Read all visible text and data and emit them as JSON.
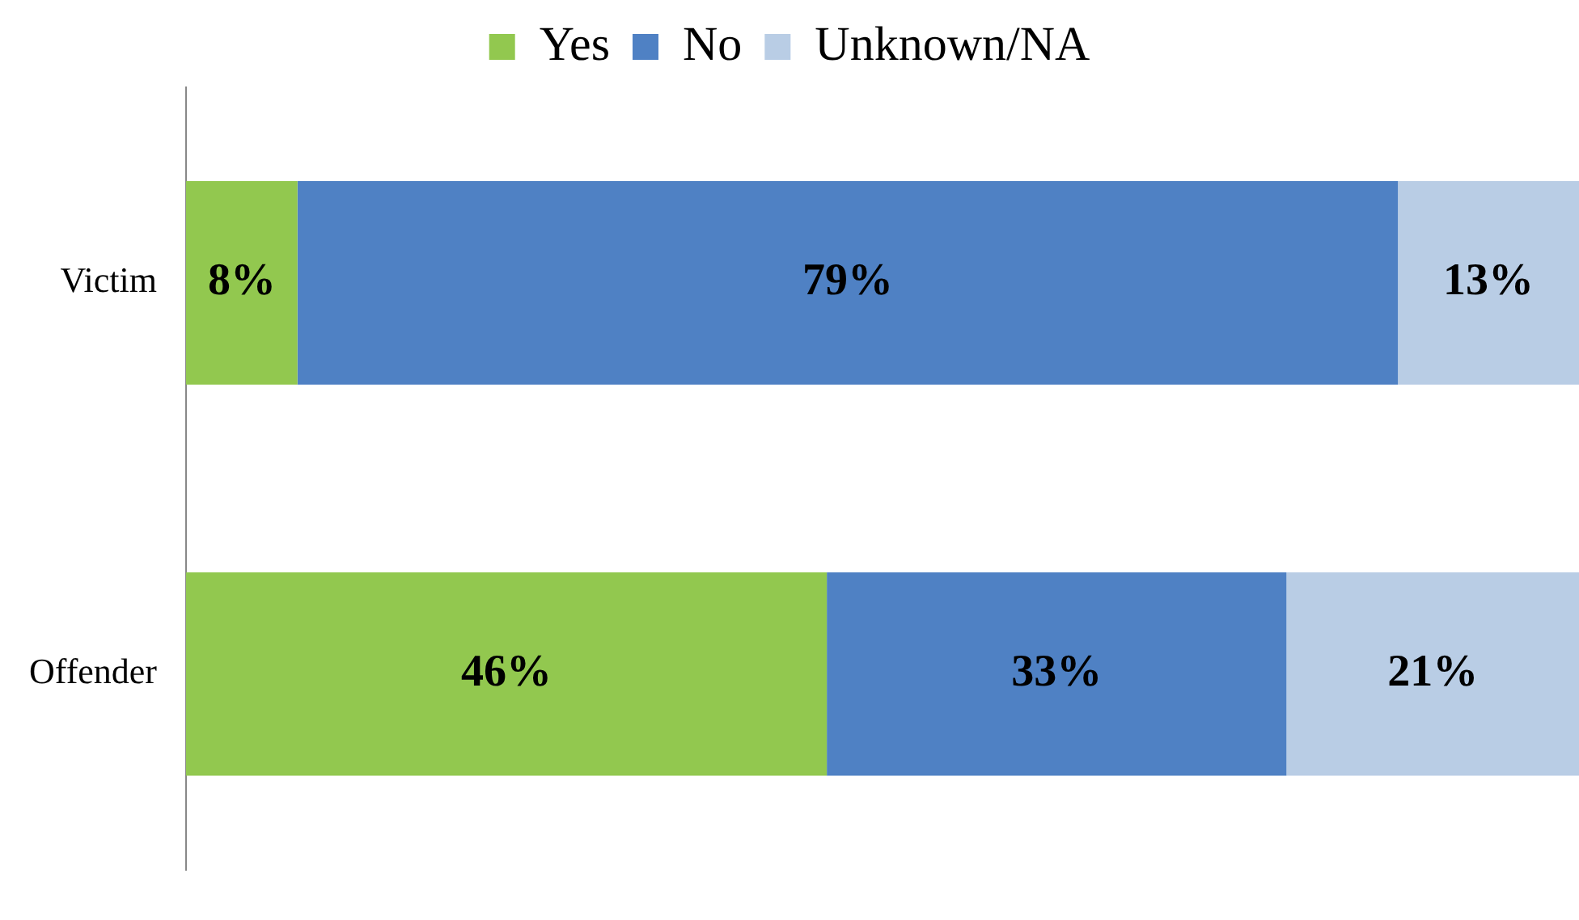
{
  "chart_data": {
    "type": "bar",
    "orientation": "horizontal",
    "stacked": true,
    "categories": [
      "Victim",
      "Offender"
    ],
    "series": [
      {
        "name": "Yes",
        "color": "#92c84f",
        "values": [
          8,
          46
        ],
        "value_labels": [
          "8%",
          "46%"
        ]
      },
      {
        "name": "No",
        "color": "#4f81c4",
        "values": [
          79,
          33
        ],
        "value_labels": [
          "79%",
          "33%"
        ]
      },
      {
        "name": "Unknown/NA",
        "color": "#b9cde5",
        "values": [
          13,
          21
        ],
        "value_labels": [
          "13%",
          "21%"
        ]
      }
    ],
    "xlim": [
      0,
      100
    ],
    "tick_labels": "y",
    "legend": "top"
  }
}
